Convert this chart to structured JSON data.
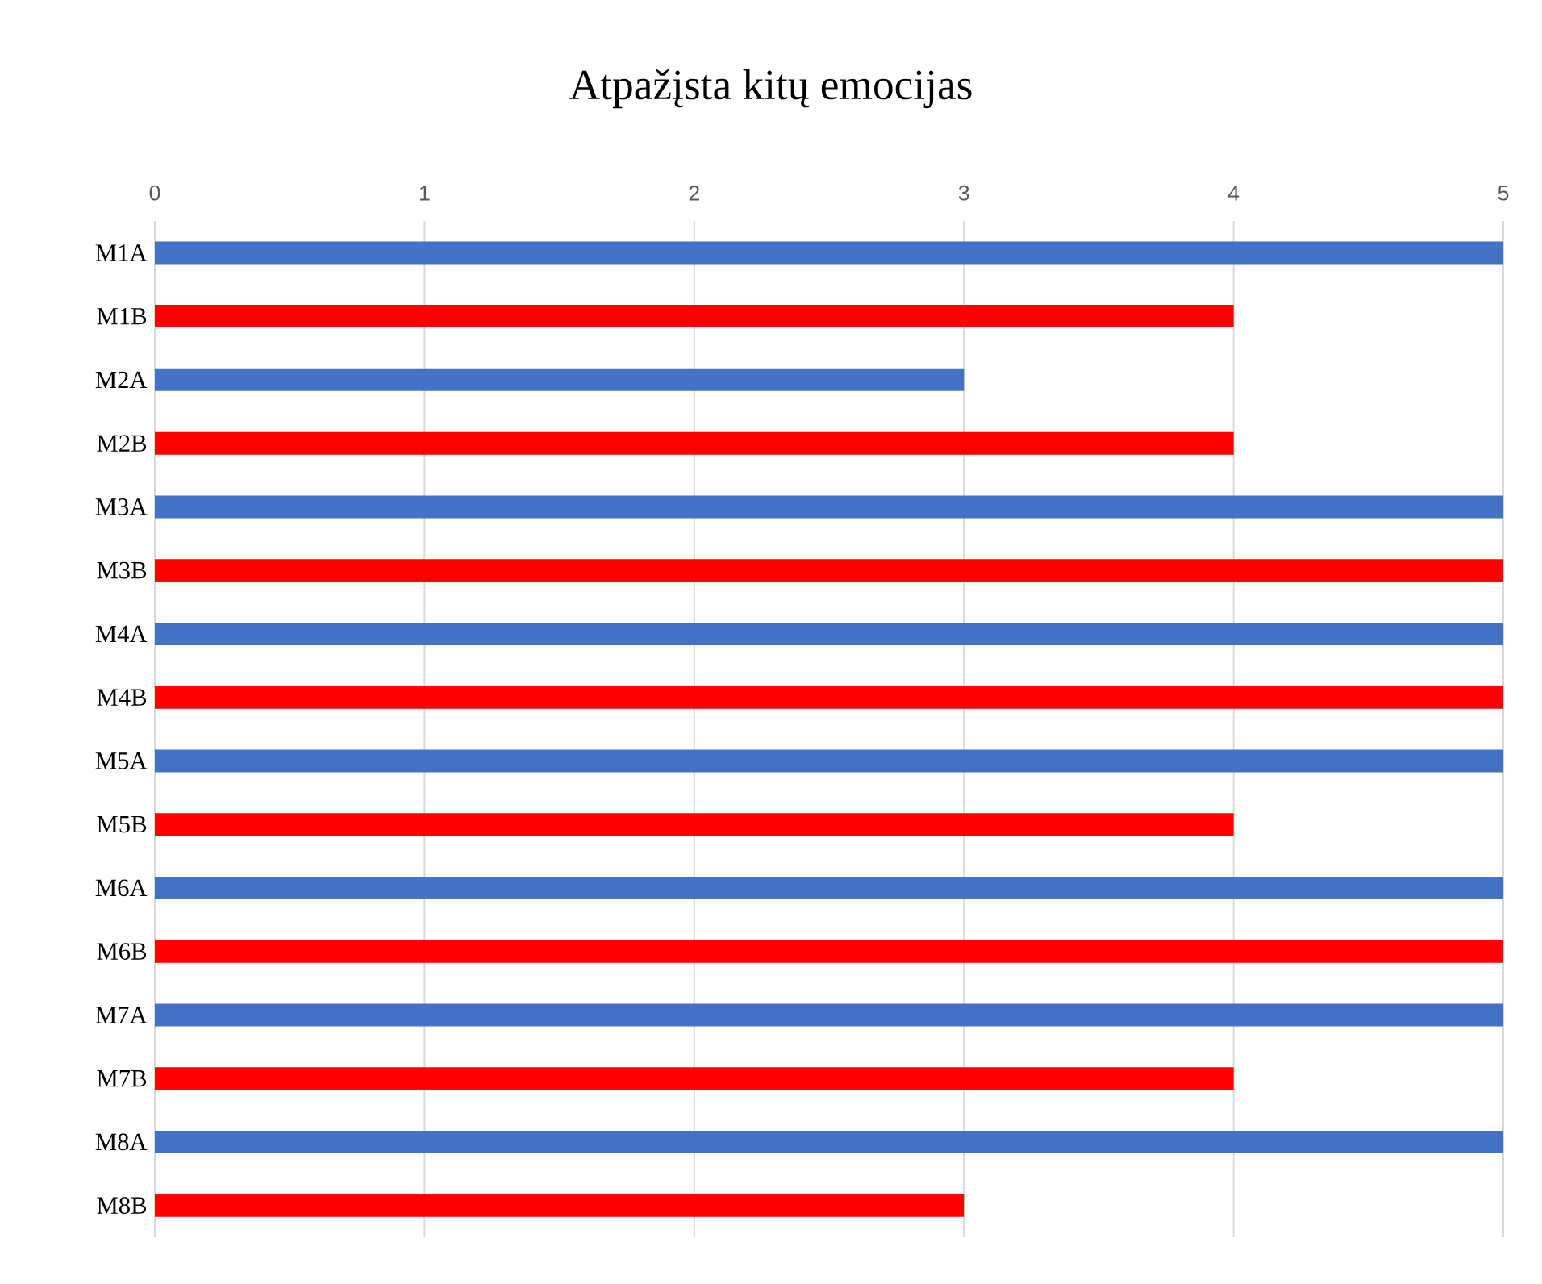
{
  "chart_data": {
    "type": "bar",
    "orientation": "horizontal",
    "title": "Atpažįsta kitų emocijas",
    "categories": [
      "M1A",
      "M1B",
      "M2A",
      "M2B",
      "M3A",
      "M3B",
      "M4A",
      "M4B",
      "M5A",
      "M5B",
      "M6A",
      "M6B",
      "M7A",
      "M7B",
      "M8A",
      "M8B"
    ],
    "values": [
      5,
      4,
      3,
      4,
      5,
      5,
      5,
      5,
      5,
      4,
      5,
      5,
      5,
      4,
      5,
      3
    ],
    "colors": [
      "#4472c4",
      "#ff0000",
      "#4472c4",
      "#ff0000",
      "#4472c4",
      "#ff0000",
      "#4472c4",
      "#ff0000",
      "#4472c4",
      "#ff0000",
      "#4472c4",
      "#ff0000",
      "#4472c4",
      "#ff0000",
      "#4472c4",
      "#ff0000"
    ],
    "xlim": [
      0,
      5
    ],
    "xticks": [
      0,
      1,
      2,
      3,
      4,
      5
    ],
    "grid": "x"
  }
}
